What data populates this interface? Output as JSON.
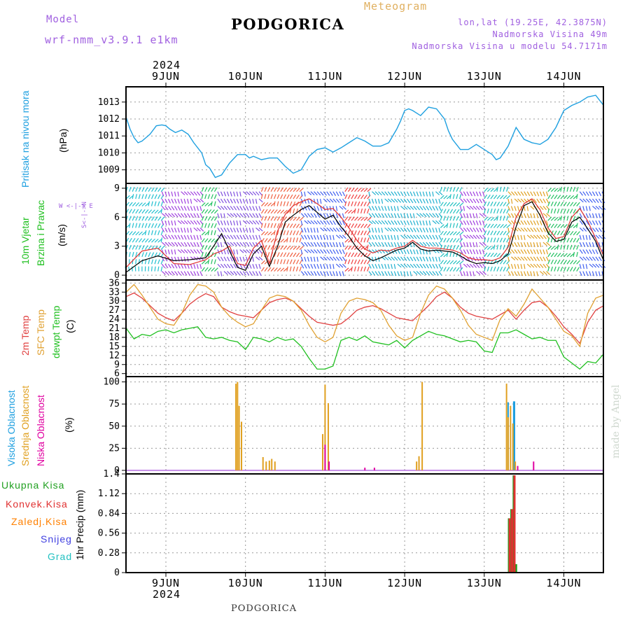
{
  "header": {
    "model_label": "Model",
    "model_name": "wrf-nmm_v3.9.1 e1km",
    "station": "PODGORICA",
    "meteogram": "Meteogram",
    "lonlat": "lon,lat (19.25E, 42.3875N)",
    "altitude": "Nadmorska Visina 49m",
    "model_altitude": "Nadmorska Visina u modelu 54.7171m",
    "footer_station": "PODGORICA",
    "credit": "made by Angel",
    "year": "2024"
  },
  "colors": {
    "pressure": "#1fa0e0",
    "wind_speed": "#000000",
    "wind_gust": "#e03030",
    "temp2m": "#e04040",
    "sfc": "#e0a030",
    "dewpt": "#20c020",
    "high_cloud": "#20a0e0",
    "mid_cloud": "#e0a020",
    "low_cloud": "#e000a0",
    "total_precip": "#20a020",
    "conv_precip": "#e03030",
    "ice_precip": "#ff8000",
    "snow": "#4040e0",
    "hail": "#20c0c0",
    "model_text": "#a060e0",
    "meteogram_text": "#e0b060"
  },
  "days": [
    "9JUN",
    "10JUN",
    "11JUN",
    "12JUN",
    "13JUN",
    "14JUN"
  ],
  "panels": {
    "pressure": {
      "label": "Pritisak na nivou mora",
      "unit": "(hPa)",
      "ticks": [
        "1009",
        "1010",
        "1011",
        "1012",
        "1013"
      ]
    },
    "wind": {
      "label1": "10m Vjetar",
      "label2": "Brzina i Pravac",
      "unit": "(m/s)",
      "ticks": [
        "0",
        "3",
        "6",
        "9"
      ],
      "compass": "W <-|-> E",
      "compass_v": "S<-|->N"
    },
    "temp": {
      "label1": "2m Temp",
      "label2": "SFC Temp",
      "label3": "dewpt Temp",
      "unit": "(C)",
      "ticks": [
        "6",
        "9",
        "12",
        "15",
        "18",
        "21",
        "24",
        "27",
        "30",
        "33",
        "36"
      ]
    },
    "cloud": {
      "label1": "Visoka Oblacnost",
      "label2": "Srednja Oblacnost",
      "label3": "Niska Oblacnost",
      "unit": "(%)",
      "ticks": [
        "0",
        "25",
        "50",
        "75",
        "100"
      ]
    },
    "precip": {
      "unit": "1hr Precip (mm)",
      "ticks": [
        "0",
        "0.28",
        "0.56",
        "0.84",
        "1.12",
        "1.4"
      ],
      "legend": [
        "Ukupna Kisa",
        "Konvek.Kisa",
        "Zaledj.Kisa",
        "Snijeg",
        "Grad"
      ]
    }
  },
  "chart_data": [
    {
      "type": "line",
      "name": "pressure",
      "x_unit": "day index (0 = 9JUN 00UTC)",
      "xlim": [
        -0.5,
        5.5
      ],
      "ylim": [
        1008.2,
        1013.9
      ],
      "series": [
        {
          "name": "Pritisak na nivou mora",
          "x": [
            -0.5,
            -0.45,
            -0.4,
            -0.35,
            -0.3,
            -0.25,
            -0.2,
            -0.12,
            -0.05,
            0.0,
            0.05,
            0.12,
            0.2,
            0.28,
            0.35,
            0.45,
            0.5,
            0.55,
            0.62,
            0.7,
            0.8,
            0.9,
            1.0,
            1.05,
            1.1,
            1.2,
            1.3,
            1.4,
            1.5,
            1.6,
            1.7,
            1.8,
            1.9,
            2.0,
            2.1,
            2.2,
            2.3,
            2.4,
            2.5,
            2.6,
            2.7,
            2.8,
            2.9,
            2.95,
            3.0,
            3.05,
            3.1,
            3.2,
            3.3,
            3.4,
            3.5,
            3.55,
            3.6,
            3.7,
            3.8,
            3.9,
            4.0,
            4.1,
            4.15,
            4.2,
            4.3,
            4.4,
            4.5,
            4.6,
            4.7,
            4.8,
            4.9,
            5.0,
            5.1,
            5.2,
            5.3,
            5.4,
            5.5
          ],
          "y": [
            1012.1,
            1011.4,
            1010.9,
            1010.6,
            1010.7,
            1010.9,
            1011.1,
            1011.6,
            1011.65,
            1011.6,
            1011.4,
            1011.2,
            1011.35,
            1011.1,
            1010.6,
            1010.0,
            1009.3,
            1009.1,
            1008.55,
            1008.7,
            1009.4,
            1009.9,
            1009.9,
            1009.7,
            1009.8,
            1009.6,
            1009.7,
            1009.7,
            1009.2,
            1008.8,
            1009.0,
            1009.8,
            1010.2,
            1010.3,
            1010.05,
            1010.3,
            1010.6,
            1010.9,
            1010.7,
            1010.4,
            1010.4,
            1010.6,
            1011.4,
            1011.9,
            1012.5,
            1012.6,
            1012.5,
            1012.2,
            1012.7,
            1012.6,
            1012.0,
            1011.3,
            1010.8,
            1010.2,
            1010.2,
            1010.5,
            1010.2,
            1009.9,
            1009.6,
            1009.7,
            1010.4,
            1011.5,
            1010.8,
            1010.6,
            1010.5,
            1010.8,
            1011.5,
            1012.5,
            1012.8,
            1013.0,
            1013.3,
            1013.4,
            1012.8
          ]
        }
      ]
    },
    {
      "type": "line",
      "name": "wind",
      "xlim": [
        -0.5,
        5.5
      ],
      "ylim": [
        -0.5,
        9.5
      ],
      "series": [
        {
          "name": "speed",
          "x": [
            -0.5,
            -0.3,
            -0.1,
            0.1,
            0.3,
            0.5,
            0.6,
            0.7,
            0.8,
            0.9,
            1.0,
            1.1,
            1.2,
            1.3,
            1.4,
            1.5,
            1.6,
            1.7,
            1.8,
            1.9,
            2.0,
            2.1,
            2.2,
            2.3,
            2.4,
            2.5,
            2.6,
            2.7,
            2.8,
            2.9,
            3.0,
            3.1,
            3.2,
            3.3,
            3.4,
            3.5,
            3.6,
            3.7,
            3.8,
            3.9,
            4.0,
            4.1,
            4.2,
            4.3,
            4.4,
            4.5,
            4.6,
            4.7,
            4.8,
            4.9,
            5.0,
            5.1,
            5.2,
            5.3,
            5.4,
            5.5
          ],
          "y": [
            0.3,
            1.5,
            2.0,
            1.5,
            1.6,
            1.8,
            3.0,
            4.3,
            2.5,
            0.8,
            0.5,
            2.2,
            3.0,
            0.9,
            2.9,
            5.5,
            6.2,
            6.8,
            7.2,
            6.5,
            5.8,
            6.2,
            5.0,
            4.0,
            2.8,
            2.0,
            1.5,
            1.8,
            2.2,
            2.6,
            2.8,
            3.4,
            2.7,
            2.5,
            2.6,
            2.5,
            2.4,
            2.0,
            1.5,
            1.2,
            1.3,
            1.2,
            1.5,
            2.2,
            5.0,
            7.2,
            7.6,
            6.2,
            4.4,
            3.5,
            3.7,
            5.5,
            6.0,
            4.8,
            3.5,
            1.5
          ]
        },
        {
          "name": "gust",
          "x": [
            -0.5,
            -0.3,
            -0.1,
            0.1,
            0.3,
            0.5,
            0.6,
            0.7,
            0.8,
            0.9,
            1.0,
            1.1,
            1.2,
            1.3,
            1.4,
            1.5,
            1.6,
            1.7,
            1.8,
            1.9,
            2.0,
            2.1,
            2.2,
            2.3,
            2.4,
            2.5,
            2.6,
            2.7,
            2.8,
            2.9,
            3.0,
            3.1,
            3.2,
            3.3,
            3.4,
            3.5,
            3.6,
            3.7,
            3.8,
            3.9,
            4.0,
            4.1,
            4.2,
            4.3,
            4.4,
            4.5,
            4.6,
            4.7,
            4.8,
            4.9,
            5.0,
            5.1,
            5.2,
            5.3,
            5.4,
            5.5
          ],
          "y": [
            0.8,
            2.5,
            2.8,
            1.2,
            1.1,
            1.6,
            2.2,
            2.5,
            3.0,
            1.2,
            1.0,
            2.8,
            3.6,
            1.2,
            4.5,
            6.3,
            7.2,
            7.6,
            7.9,
            7.4,
            6.8,
            6.9,
            6.0,
            4.9,
            3.6,
            2.7,
            2.3,
            2.6,
            2.5,
            2.8,
            3.0,
            3.6,
            3.0,
            2.8,
            2.8,
            2.7,
            2.6,
            2.3,
            1.8,
            1.6,
            1.6,
            1.5,
            1.8,
            2.9,
            6.0,
            7.4,
            7.9,
            6.8,
            4.9,
            3.8,
            4.0,
            6.0,
            6.9,
            5.6,
            3.8,
            2.0
          ]
        }
      ]
    },
    {
      "type": "line",
      "name": "temperature",
      "xlim": [
        -0.5,
        5.5
      ],
      "ylim": [
        5,
        37
      ],
      "series": [
        {
          "name": "2m Temp",
          "x": [
            -0.5,
            -0.4,
            -0.3,
            -0.2,
            -0.1,
            0.0,
            0.1,
            0.2,
            0.3,
            0.4,
            0.5,
            0.6,
            0.7,
            0.8,
            0.9,
            1.0,
            1.1,
            1.2,
            1.3,
            1.4,
            1.5,
            1.6,
            1.7,
            1.8,
            1.9,
            2.0,
            2.1,
            2.2,
            2.3,
            2.4,
            2.5,
            2.6,
            2.7,
            2.8,
            2.9,
            3.0,
            3.1,
            3.2,
            3.3,
            3.4,
            3.5,
            3.6,
            3.7,
            3.8,
            3.9,
            4.0,
            4.1,
            4.2,
            4.3,
            4.4,
            4.5,
            4.6,
            4.7,
            4.8,
            4.9,
            5.0,
            5.1,
            5.2,
            5.3,
            5.4,
            5.5
          ],
          "y": [
            31.5,
            32.7,
            31.0,
            28.5,
            26.0,
            24.5,
            23.5,
            26.0,
            29.0,
            31.0,
            32.5,
            31.5,
            28.0,
            26.5,
            25.5,
            25.0,
            24.5,
            27.0,
            29.5,
            30.5,
            31.0,
            30.0,
            27.5,
            25.0,
            23.0,
            22.5,
            22.0,
            22.5,
            24.5,
            27.0,
            28.0,
            28.5,
            27.5,
            26.0,
            24.5,
            24.0,
            23.5,
            26.0,
            28.5,
            31.5,
            33.0,
            31.0,
            28.0,
            26.0,
            25.0,
            24.5,
            24.0,
            25.5,
            27.0,
            24.0,
            27.0,
            29.5,
            30.0,
            28.0,
            25.0,
            21.5,
            19.0,
            16.0,
            23.0,
            27.0,
            28.5
          ]
        },
        {
          "name": "SFC Temp",
          "x": [
            -0.5,
            -0.4,
            -0.3,
            -0.2,
            -0.1,
            0.0,
            0.1,
            0.2,
            0.3,
            0.4,
            0.5,
            0.6,
            0.7,
            0.8,
            0.9,
            1.0,
            1.1,
            1.2,
            1.3,
            1.4,
            1.5,
            1.6,
            1.7,
            1.8,
            1.9,
            2.0,
            2.1,
            2.2,
            2.3,
            2.4,
            2.5,
            2.6,
            2.7,
            2.8,
            2.9,
            3.0,
            3.1,
            3.2,
            3.3,
            3.4,
            3.5,
            3.6,
            3.7,
            3.8,
            3.9,
            4.0,
            4.1,
            4.2,
            4.3,
            4.4,
            4.5,
            4.6,
            4.7,
            4.8,
            4.9,
            5.0,
            5.1,
            5.2,
            5.3,
            5.4,
            5.5
          ],
          "y": [
            33.0,
            35.5,
            32.0,
            28.0,
            24.0,
            22.5,
            22.0,
            26.0,
            32.0,
            35.5,
            35.0,
            33.0,
            28.0,
            25.0,
            23.0,
            21.5,
            22.5,
            27.0,
            31.0,
            32.0,
            31.5,
            30.0,
            27.0,
            22.0,
            18.0,
            16.5,
            18.0,
            26.0,
            30.0,
            31.0,
            30.5,
            29.5,
            27.0,
            22.0,
            18.5,
            17.0,
            18.0,
            26.0,
            32.0,
            35.0,
            34.0,
            31.0,
            27.0,
            22.0,
            19.0,
            18.0,
            17.0,
            24.0,
            27.5,
            25.0,
            29.0,
            34.0,
            31.0,
            28.0,
            24.0,
            20.0,
            18.5,
            15.0,
            26.0,
            31.0,
            32.0
          ]
        },
        {
          "name": "dewpt Temp",
          "x": [
            -0.5,
            -0.4,
            -0.3,
            -0.2,
            -0.1,
            0.0,
            0.1,
            0.2,
            0.3,
            0.4,
            0.5,
            0.6,
            0.7,
            0.8,
            0.9,
            1.0,
            1.1,
            1.2,
            1.3,
            1.4,
            1.5,
            1.6,
            1.7,
            1.8,
            1.9,
            2.0,
            2.1,
            2.2,
            2.3,
            2.4,
            2.5,
            2.6,
            2.7,
            2.8,
            2.9,
            3.0,
            3.1,
            3.2,
            3.3,
            3.4,
            3.5,
            3.6,
            3.7,
            3.8,
            3.9,
            4.0,
            4.1,
            4.2,
            4.3,
            4.4,
            4.5,
            4.6,
            4.7,
            4.8,
            4.9,
            5.0,
            5.1,
            5.2,
            5.3,
            5.4,
            5.5
          ],
          "y": [
            21.0,
            17.5,
            19.0,
            18.5,
            20.0,
            20.5,
            19.5,
            20.5,
            21.0,
            21.5,
            18.0,
            17.5,
            18.0,
            17.0,
            16.5,
            14.0,
            18.0,
            17.5,
            16.5,
            18.0,
            17.0,
            17.5,
            15.0,
            11.0,
            7.5,
            7.5,
            8.5,
            17.0,
            18.0,
            17.0,
            18.5,
            16.5,
            16.0,
            15.5,
            17.0,
            14.5,
            17.0,
            18.5,
            20.0,
            19.0,
            18.5,
            17.5,
            16.5,
            17.0,
            16.5,
            13.5,
            13.0,
            19.5,
            19.5,
            20.5,
            19.0,
            17.5,
            18.0,
            17.0,
            17.0,
            11.5,
            9.5,
            7.5,
            10.0,
            9.5,
            12.5
          ]
        }
      ]
    },
    {
      "type": "bar",
      "name": "cloud",
      "ylim": [
        0,
        100
      ],
      "series": [
        {
          "name": "Visoka Oblacnost",
          "x": [
            4.3,
            4.37,
            4.38
          ],
          "y": [
            77,
            78,
            78
          ]
        },
        {
          "name": "Srednja Oblacnost",
          "x": [
            0.88,
            0.9,
            0.92,
            0.95,
            1.22,
            1.26,
            1.3,
            1.33,
            1.37,
            1.97,
            2.0,
            2.04,
            3.15,
            3.18,
            3.22,
            4.28,
            4.3,
            4.33,
            4.36,
            4.39
          ],
          "y": [
            98,
            100,
            73,
            55,
            15,
            10,
            11,
            13,
            10,
            41,
            97,
            76,
            10,
            16,
            100,
            98,
            60,
            73,
            53,
            10
          ]
        },
        {
          "name": "Niska Oblacnost",
          "x": [
            2.0,
            2.05,
            2.5,
            2.62,
            4.42,
            4.62
          ],
          "y": [
            29,
            10,
            3,
            3,
            5,
            10
          ]
        }
      ]
    },
    {
      "type": "bar",
      "name": "precip",
      "ylim": [
        0,
        1.4
      ],
      "series": [
        {
          "name": "Ukupna Kisa",
          "x": [
            4.31,
            4.34,
            4.37,
            4.4
          ],
          "y": [
            0.77,
            0.9,
            1.38,
            0.12
          ]
        },
        {
          "name": "Konvek.Kisa",
          "x": [
            4.32,
            4.35,
            4.38
          ],
          "y": [
            0.77,
            0.9,
            1.38
          ]
        }
      ]
    }
  ]
}
